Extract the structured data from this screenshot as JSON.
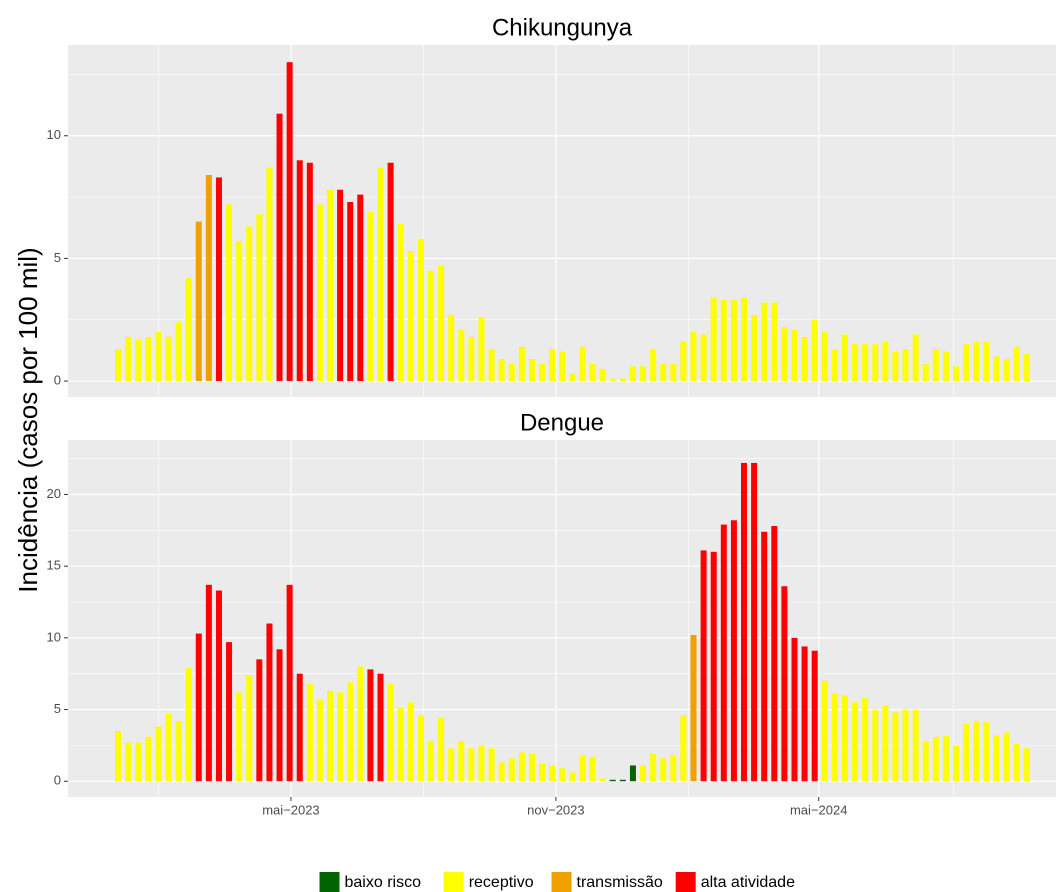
{
  "ylabel": "Incidência (casos por 100 mil)",
  "legend": [
    {
      "name": "baixo risco",
      "color": "#006400"
    },
    {
      "name": "receptivo",
      "color": "#FFFF00"
    },
    {
      "name": "transmissão",
      "color": "#F0A000"
    },
    {
      "name": "alta atividade",
      "color": "#FF0000"
    }
  ],
  "chart_data": [
    {
      "type": "bar",
      "title": "Chikungunya",
      "x": [
        1,
        2,
        3,
        4,
        5,
        6,
        7,
        8,
        9,
        10,
        11,
        12,
        13,
        14,
        15,
        16,
        17,
        18,
        19,
        20,
        21,
        22,
        23,
        24,
        25,
        26,
        27,
        28,
        29,
        30,
        31,
        32,
        33,
        34,
        35,
        36,
        37,
        38,
        39,
        40,
        41,
        42,
        43,
        44,
        45,
        46,
        47,
        48,
        49,
        50,
        51,
        52,
        53,
        54,
        55,
        56,
        57,
        58,
        59,
        60,
        61,
        62,
        63,
        64,
        65,
        66,
        67,
        68,
        69,
        70,
        71,
        72,
        73,
        74,
        75,
        76,
        77,
        78,
        79,
        80,
        81,
        82,
        83,
        84,
        85,
        86,
        87,
        88,
        89,
        90,
        91
      ],
      "values": [
        1.3,
        1.8,
        1.7,
        1.8,
        2.0,
        1.8,
        2.4,
        4.2,
        6.5,
        8.4,
        8.3,
        7.2,
        5.7,
        6.3,
        6.8,
        8.7,
        10.9,
        13.0,
        9.0,
        8.9,
        7.2,
        7.8,
        7.8,
        7.3,
        7.6,
        6.9,
        8.7,
        8.9,
        6.4,
        5.3,
        5.8,
        4.5,
        4.7,
        2.7,
        2.1,
        1.8,
        2.6,
        1.3,
        0.9,
        0.7,
        1.4,
        0.9,
        0.7,
        1.3,
        1.2,
        0.3,
        1.4,
        0.7,
        0.5,
        0.1,
        0.1,
        0.6,
        0.6,
        1.3,
        0.7,
        0.7,
        1.6,
        2.0,
        1.9,
        3.4,
        3.3,
        3.3,
        3.4,
        2.7,
        3.2,
        3.2,
        2.2,
        2.1,
        1.8,
        2.5,
        2.0,
        1.3,
        1.9,
        1.5,
        1.5,
        1.5,
        1.6,
        1.2,
        1.3,
        1.9,
        0.7,
        1.3,
        1.2,
        0.6,
        1.5,
        1.6,
        1.6,
        1.0,
        0.9,
        1.4,
        1.1
      ],
      "colors": [
        "#FFFF00",
        "#FFFF00",
        "#FFFF00",
        "#FFFF00",
        "#FFFF00",
        "#FFFF00",
        "#FFFF00",
        "#FFFF00",
        "#F0A000",
        "#F0A000",
        "#FF0000",
        "#FFFF00",
        "#FFFF00",
        "#FFFF00",
        "#FFFF00",
        "#FFFF00",
        "#FF0000",
        "#FF0000",
        "#FF0000",
        "#FF0000",
        "#FFFF00",
        "#FFFF00",
        "#FF0000",
        "#FF0000",
        "#FF0000",
        "#FFFF00",
        "#FFFF00",
        "#FF0000",
        "#FFFF00",
        "#FFFF00",
        "#FFFF00",
        "#FFFF00",
        "#FFFF00",
        "#FFFF00",
        "#FFFF00",
        "#FFFF00",
        "#FFFF00",
        "#FFFF00",
        "#FFFF00",
        "#FFFF00",
        "#FFFF00",
        "#FFFF00",
        "#FFFF00",
        "#FFFF00",
        "#FFFF00",
        "#FFFF00",
        "#FFFF00",
        "#FFFF00",
        "#FFFF00",
        "#FFFF00",
        "#FFFF00",
        "#FFFF00",
        "#FFFF00",
        "#FFFF00",
        "#FFFF00",
        "#FFFF00",
        "#FFFF00",
        "#FFFF00",
        "#FFFF00",
        "#FFFF00",
        "#FFFF00",
        "#FFFF00",
        "#FFFF00",
        "#FFFF00",
        "#FFFF00",
        "#FFFF00",
        "#FFFF00",
        "#FFFF00",
        "#FFFF00",
        "#FFFF00",
        "#FFFF00",
        "#FFFF00",
        "#FFFF00",
        "#FFFF00",
        "#FFFF00",
        "#FFFF00",
        "#FFFF00",
        "#FFFF00",
        "#FFFF00",
        "#FFFF00",
        "#FFFF00",
        "#FFFF00",
        "#FFFF00",
        "#FFFF00",
        "#FFFF00",
        "#FFFF00",
        "#FFFF00",
        "#FFFF00",
        "#FFFF00",
        "#FFFF00",
        "#FFFF00"
      ],
      "ylim": [
        -0.65,
        13.7
      ],
      "yticks": [
        0,
        5,
        10
      ],
      "grid": true
    },
    {
      "type": "bar",
      "title": "Dengue",
      "x": [
        1,
        2,
        3,
        4,
        5,
        6,
        7,
        8,
        9,
        10,
        11,
        12,
        13,
        14,
        15,
        16,
        17,
        18,
        19,
        20,
        21,
        22,
        23,
        24,
        25,
        26,
        27,
        28,
        29,
        30,
        31,
        32,
        33,
        34,
        35,
        36,
        37,
        38,
        39,
        40,
        41,
        42,
        43,
        44,
        45,
        46,
        47,
        48,
        49,
        50,
        51,
        52,
        53,
        54,
        55,
        56,
        57,
        58,
        59,
        60,
        61,
        62,
        63,
        64,
        65,
        66,
        67,
        68,
        69,
        70,
        71,
        72,
        73,
        74,
        75,
        76,
        77,
        78,
        79,
        80,
        81,
        82,
        83,
        84,
        85,
        86,
        87,
        88,
        89,
        90,
        91
      ],
      "values": [
        3.5,
        2.7,
        2.7,
        3.1,
        3.8,
        4.7,
        4.2,
        7.9,
        10.3,
        13.7,
        13.3,
        9.7,
        6.2,
        7.4,
        8.5,
        11.0,
        9.2,
        13.7,
        7.5,
        6.8,
        5.7,
        6.3,
        6.2,
        6.9,
        8.0,
        7.8,
        7.5,
        6.8,
        5.1,
        5.5,
        4.6,
        2.8,
        4.4,
        2.3,
        2.8,
        2.3,
        2.5,
        2.3,
        1.3,
        1.6,
        2.0,
        1.9,
        1.2,
        1.1,
        0.9,
        0.6,
        1.8,
        1.7,
        0.2,
        0.1,
        0.1,
        1.1,
        1.1,
        1.9,
        1.6,
        1.8,
        4.6,
        10.2,
        16.1,
        16.0,
        17.9,
        18.2,
        22.2,
        22.2,
        17.4,
        17.8,
        13.6,
        10.0,
        9.4,
        9.1,
        7.0,
        6.1,
        6.0,
        5.5,
        5.8,
        5.0,
        5.3,
        4.8,
        5.0,
        5.0,
        2.8,
        3.1,
        3.2,
        2.5,
        4.0,
        4.2,
        4.1,
        3.2,
        3.4,
        2.6,
        2.3
      ],
      "colors": [
        "#FFFF00",
        "#FFFF00",
        "#FFFF00",
        "#FFFF00",
        "#FFFF00",
        "#FFFF00",
        "#FFFF00",
        "#FFFF00",
        "#FF0000",
        "#FF0000",
        "#FF0000",
        "#FF0000",
        "#FFFF00",
        "#FFFF00",
        "#FF0000",
        "#FF0000",
        "#FF0000",
        "#FF0000",
        "#FF0000",
        "#FFFF00",
        "#FFFF00",
        "#FFFF00",
        "#FFFF00",
        "#FFFF00",
        "#FFFF00",
        "#FF0000",
        "#FF0000",
        "#FFFF00",
        "#FFFF00",
        "#FFFF00",
        "#FFFF00",
        "#FFFF00",
        "#FFFF00",
        "#FFFF00",
        "#FFFF00",
        "#FFFF00",
        "#FFFF00",
        "#FFFF00",
        "#FFFF00",
        "#FFFF00",
        "#FFFF00",
        "#FFFF00",
        "#FFFF00",
        "#FFFF00",
        "#FFFF00",
        "#FFFF00",
        "#FFFF00",
        "#FFFF00",
        "#FFFF00",
        "#006400",
        "#006400",
        "#006400",
        "#FFFF00",
        "#FFFF00",
        "#FFFF00",
        "#FFFF00",
        "#FFFF00",
        "#F0A000",
        "#FF0000",
        "#FF0000",
        "#FF0000",
        "#FF0000",
        "#FF0000",
        "#FF0000",
        "#FF0000",
        "#FF0000",
        "#FF0000",
        "#FF0000",
        "#FF0000",
        "#FF0000",
        "#FFFF00",
        "#FFFF00",
        "#FFFF00",
        "#FFFF00",
        "#FFFF00",
        "#FFFF00",
        "#FFFF00",
        "#FFFF00",
        "#FFFF00",
        "#FFFF00",
        "#FFFF00",
        "#FFFF00",
        "#FFFF00",
        "#FFFF00",
        "#FFFF00",
        "#FFFF00",
        "#FFFF00",
        "#FFFF00",
        "#FFFF00",
        "#FFFF00",
        "#FFFF00"
      ],
      "xlim": [
        -3.95,
        93.9
      ],
      "xticks": [
        {
          "value": 18.13,
          "label": "mai−2023"
        },
        {
          "value": 44.37,
          "label": "nov−2023"
        },
        {
          "value": 70.4,
          "label": "mai−2024"
        }
      ],
      "ylim": [
        -1.1,
        23.8
      ],
      "yticks": [
        0,
        5,
        10,
        15,
        20
      ],
      "grid": true
    }
  ]
}
